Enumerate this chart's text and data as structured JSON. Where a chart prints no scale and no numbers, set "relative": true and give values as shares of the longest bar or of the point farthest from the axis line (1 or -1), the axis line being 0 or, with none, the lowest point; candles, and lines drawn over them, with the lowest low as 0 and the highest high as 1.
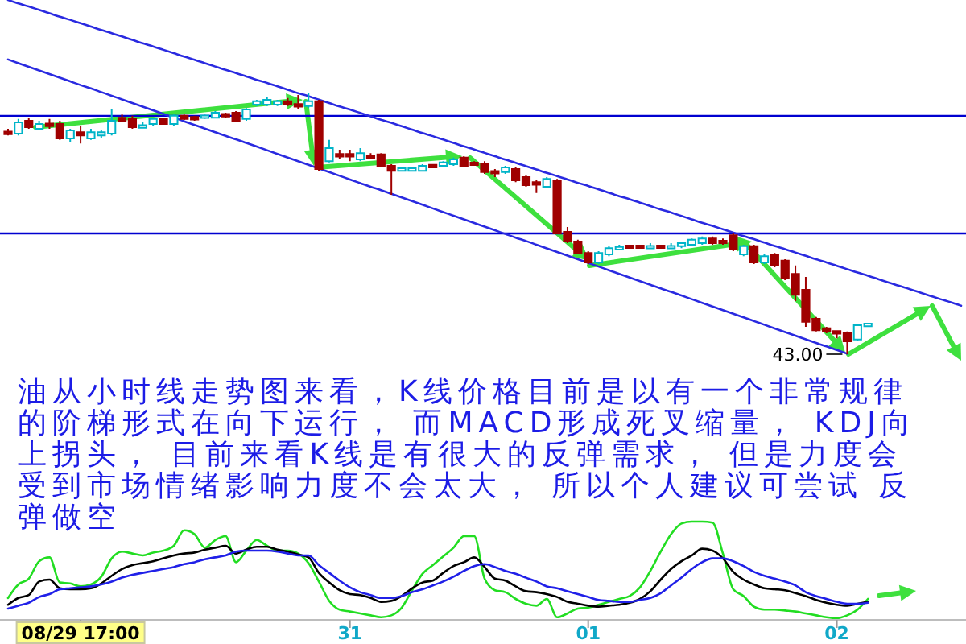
{
  "chart_data": [
    {
      "type": "candlestick",
      "relative": true,
      "categories": [
        null,
        null,
        null,
        null,
        null,
        null,
        null,
        null,
        null,
        null,
        null,
        null,
        null,
        null,
        null,
        null,
        null,
        null,
        null,
        null,
        null,
        null,
        null,
        null,
        null,
        null,
        null,
        null,
        null,
        null,
        null,
        null,
        null,
        null,
        null,
        null,
        null,
        null,
        null,
        null,
        null,
        null,
        null,
        null,
        null,
        null,
        null,
        null,
        null,
        null,
        null,
        null,
        null,
        null,
        null,
        null,
        null,
        null,
        null,
        null,
        null,
        null,
        null,
        null,
        null,
        null,
        null,
        null,
        null,
        null,
        null,
        null,
        null,
        null,
        null,
        null,
        null,
        null,
        null,
        null,
        null,
        null,
        null,
        null,
        null,
        null,
        null,
        null,
        null,
        null,
        null,
        null,
        null
      ],
      "ohlc": [
        [
          0.851,
          0.864,
          0.839,
          0.846
        ],
        [
          0.846,
          0.902,
          0.839,
          0.889
        ],
        [
          0.895,
          0.907,
          0.864,
          0.87
        ],
        [
          0.864,
          0.895,
          0.858,
          0.883
        ],
        [
          0.883,
          0.902,
          0.864,
          0.876
        ],
        [
          0.883,
          0.895,
          0.822,
          0.827
        ],
        [
          0.827,
          0.864,
          0.815,
          0.858
        ],
        [
          0.851,
          0.876,
          0.808,
          0.839
        ],
        [
          0.827,
          0.864,
          0.822,
          0.851
        ],
        [
          0.839,
          0.858,
          0.827,
          0.851
        ],
        [
          0.846,
          0.938,
          0.839,
          0.895
        ],
        [
          0.907,
          0.919,
          0.889,
          0.895
        ],
        [
          0.902,
          0.914,
          0.864,
          0.87
        ],
        [
          0.87,
          0.889,
          0.868,
          0.876
        ],
        [
          0.883,
          0.907,
          0.876,
          0.902
        ],
        [
          0.902,
          0.907,
          0.883,
          0.883
        ],
        [
          0.883,
          0.919,
          0.876,
          0.914
        ],
        [
          0.914,
          0.919,
          0.898,
          0.902
        ],
        [
          0.907,
          0.914,
          0.895,
          0.902
        ],
        [
          0.907,
          0.919,
          0.902,
          0.914
        ],
        [
          0.907,
          0.932,
          0.904,
          0.926
        ],
        [
          0.919,
          0.926,
          0.907,
          0.914
        ],
        [
          0.926,
          0.932,
          0.889,
          0.895
        ],
        [
          0.902,
          0.944,
          0.895,
          0.938
        ],
        [
          0.957,
          0.975,
          0.951,
          0.97
        ],
        [
          0.957,
          0.987,
          0.951,
          0.975
        ],
        [
          0.957,
          0.975,
          0.951,
          0.97
        ],
        [
          0.97,
          0.982,
          0.951,
          0.957
        ],
        [
          0.957,
          0.994,
          0.938,
          0.951
        ],
        [
          0.951,
          1,
          0.944,
          0.97
        ],
        [
          0.97,
          0.975,
          0.703,
          0.71
        ],
        [
          0.74,
          0.822,
          0.735,
          0.79
        ],
        [
          0.766,
          0.784,
          0.747,
          0.759
        ],
        [
          0.766,
          0.784,
          0.74,
          0.759
        ],
        [
          0.747,
          0.79,
          0.74,
          0.771
        ],
        [
          0.759,
          0.771,
          0.747,
          0.754
        ],
        [
          0.766,
          0.771,
          0.722,
          0.722
        ],
        [
          0.722,
          0.728,
          0.611,
          0.703
        ],
        [
          0.706,
          0.716,
          0.703,
          0.71
        ],
        [
          0.706,
          0.716,
          0.703,
          0.71
        ],
        [
          0.703,
          0.728,
          0.701,
          0.722
        ],
        [
          0.722,
          0.728,
          0.716,
          0.72
        ],
        [
          0.722,
          0.74,
          0.716,
          0.735
        ],
        [
          0.728,
          0.754,
          0.722,
          0.747
        ],
        [
          0.754,
          0.759,
          0.722,
          0.722
        ],
        [
          0.732,
          0.74,
          0.722,
          0.728
        ],
        [
          0.728,
          0.74,
          0.691,
          0.698
        ],
        [
          0.701,
          0.71,
          0.679,
          0.694
        ],
        [
          0.698,
          0.722,
          0.691,
          0.716
        ],
        [
          0.71,
          0.716,
          0.66,
          0.667
        ],
        [
          0.679,
          0.686,
          0.642,
          0.648
        ],
        [
          0.657,
          0.667,
          0.618,
          0.652
        ],
        [
          0.642,
          0.679,
          0.636,
          0.672
        ],
        [
          0.667,
          0.672,
          0.463,
          0.463
        ],
        [
          0.469,
          0.488,
          0.426,
          0.432
        ],
        [
          0.432,
          0.439,
          0.383,
          0.388
        ],
        [
          0.388,
          0.395,
          0.346,
          0.352
        ],
        [
          0.352,
          0.395,
          0.346,
          0.388
        ],
        [
          0.383,
          0.414,
          0.376,
          0.407
        ],
        [
          0.405,
          0.42,
          0.401,
          0.407
        ],
        [
          0.414,
          0.42,
          0.407,
          0.41
        ],
        [
          0.414,
          0.42,
          0.407,
          0.41
        ],
        [
          0.407,
          0.426,
          0.405,
          0.414
        ],
        [
          0.414,
          0.42,
          0.407,
          0.41
        ],
        [
          0.407,
          0.426,
          0.405,
          0.414
        ],
        [
          0.414,
          0.432,
          0.407,
          0.426
        ],
        [
          0.42,
          0.444,
          0.414,
          0.439
        ],
        [
          0.426,
          0.451,
          0.42,
          0.444
        ],
        [
          0.444,
          0.451,
          0.42,
          0.426
        ],
        [
          0.432,
          0.444,
          0.42,
          0.429
        ],
        [
          0.456,
          0.463,
          0.395,
          0.401
        ],
        [
          0.383,
          0.42,
          0.376,
          0.414
        ],
        [
          0.414,
          0.42,
          0.346,
          0.352
        ],
        [
          0.352,
          0.383,
          0.346,
          0.376
        ],
        [
          0.383,
          0.388,
          0.333,
          0.34
        ],
        [
          0.359,
          0.364,
          0.284,
          0.291
        ],
        [
          0.308,
          0.34,
          0.204,
          0.228
        ],
        [
          0.247,
          0.296,
          0.105,
          0.124
        ],
        [
          0.136,
          0.143,
          0.087,
          0.092
        ],
        [
          0.099,
          0.105,
          0.08,
          0.09
        ],
        [
          0.087,
          0.092,
          0.061,
          0.08
        ],
        [
          0.08,
          0.087,
          0,
          0.049
        ],
        [
          0.056,
          0.117,
          0.049,
          0.111
        ],
        [
          0.111,
          0.117,
          0.105,
          0.114
        ],
        null,
        null,
        null,
        null,
        null,
        null,
        null,
        null,
        null
      ],
      "series": [
        {
          "type": "line",
          "color": "#2a2ae0",
          "values": [
            1.358,
            1.345,
            1.333,
            1.32,
            1.307,
            1.294,
            1.282,
            1.269,
            1.256,
            1.243,
            1.231,
            1.218,
            1.205,
            1.192,
            1.18,
            1.167,
            1.154,
            1.141,
            1.129,
            1.116,
            1.103,
            1.09,
            1.078,
            1.065,
            1.052,
            1.04,
            1.027,
            1.014,
            1.001,
            0.989,
            0.976,
            0.963,
            0.95,
            0.938,
            0.925,
            0.912,
            0.899,
            0.887,
            0.874,
            0.861,
            0.848,
            0.836,
            0.823,
            0.81,
            0.797,
            0.785,
            0.772,
            0.759,
            0.746,
            0.734,
            0.721,
            0.708,
            0.695,
            0.683,
            0.67,
            0.657,
            0.645,
            0.632,
            0.619,
            0.606,
            0.594,
            0.581,
            0.568,
            0.555,
            0.543,
            0.53,
            0.517,
            0.504,
            0.492,
            0.479,
            0.466,
            0.453,
            0.441,
            0.428,
            0.415,
            0.403,
            0.39,
            0.377,
            0.364,
            0.352,
            0.339,
            0.326,
            0.313,
            0.301,
            0.288,
            0.275,
            0.262,
            0.25,
            0.237,
            0.224,
            0.211,
            0.199,
            0.186
          ]
        },
        {
          "type": "line",
          "color": "#2a2ae0",
          "values": [
            1.13,
            1.116,
            1.102,
            1.088,
            1.074,
            1.06,
            1.046,
            1.032,
            1.019,
            1.005,
            0.991,
            0.977,
            0.963,
            0.949,
            0.935,
            0.921,
            0.907,
            0.893,
            0.879,
            0.865,
            0.851,
            0.837,
            0.824,
            0.81,
            0.796,
            0.782,
            0.768,
            0.754,
            0.74,
            0.726,
            0.712,
            0.698,
            0.684,
            0.67,
            0.656,
            0.642,
            0.629,
            0.615,
            0.601,
            0.587,
            0.573,
            0.559,
            0.545,
            0.531,
            0.517,
            0.503,
            0.489,
            0.475,
            0.461,
            0.447,
            0.434,
            0.42,
            0.406,
            0.392,
            0.378,
            0.364,
            0.35,
            0.336,
            0.322,
            0.308,
            0.294,
            0.28,
            0.266,
            0.252,
            0.239,
            0.225,
            0.211,
            0.197,
            0.183,
            0.169,
            0.155,
            0.141,
            0.127,
            0.113,
            0.099,
            0.085,
            0.071,
            0.057,
            0.043,
            0.03,
            0.016,
            0.002,
            null,
            null,
            null,
            null,
            null,
            null,
            null,
            null,
            null,
            null,
            null
          ]
        }
      ],
      "ref_lines": [
        {
          "axis": "y",
          "value": 0.914,
          "color": "#0000d0"
        },
        {
          "axis": "y",
          "value": 0.463,
          "color": "#0000d0"
        }
      ],
      "annotations": [
        "43.00"
      ]
    },
    {
      "type": "other",
      "annotations": [
        "油从小时线走势图来看，K线价格目前是以有一个非常规律的阶梯形式在向下运行， 而MACD形成死叉缩量， KDJ向上拐头， 目前来看K线是有很大的反弹需求， 但是力度会受到市场情绪影响力度不会太大， 所以个人建议可尝试 反弹做空"
      ]
    },
    {
      "type": "line",
      "relative": true,
      "tick_labels": "x",
      "categories": [
        null,
        null,
        null,
        null,
        null,
        null,
        null,
        "08/29 17:00",
        null,
        null,
        null,
        null,
        null,
        null,
        null,
        null,
        null,
        null,
        null,
        null,
        null,
        null,
        null,
        null,
        null,
        null,
        null,
        null,
        null,
        null,
        null,
        null,
        null,
        "31",
        null,
        null,
        null,
        null,
        null,
        null,
        null,
        null,
        null,
        null,
        null,
        null,
        null,
        null,
        null,
        null,
        null,
        null,
        null,
        null,
        null,
        null,
        "01",
        null,
        null,
        null,
        null,
        null,
        null,
        null,
        null,
        null,
        null,
        null,
        null,
        null,
        null,
        null,
        null,
        null,
        null,
        null,
        null,
        null,
        null,
        null,
        "02",
        null,
        null,
        null,
        null,
        null,
        null,
        null,
        null,
        null,
        null,
        null,
        null
      ],
      "series": [
        {
          "color": "#22dd22",
          "values": [
            0.21,
            0.35,
            0.41,
            0.59,
            0.63,
            0.37,
            0.36,
            0.33,
            0.35,
            0.43,
            0.62,
            0.69,
            0.67,
            0.65,
            0.68,
            0.7,
            0.75,
            0.91,
            0.87,
            0.73,
            0.81,
            0.85,
            0.58,
            0.7,
            0.81,
            0.75,
            0.7,
            0.7,
            0.67,
            0.57,
            0.38,
            0.18,
            0.09,
            0.07,
            0.05,
            0.03,
            0.01,
            0.03,
            0.11,
            0.29,
            0.46,
            0.55,
            0.64,
            0.73,
            0.85,
            0.85,
            0.41,
            0.29,
            0.27,
            0.2,
            0.15,
            0.13,
            0.2,
            0.01,
            0.05,
            0.1,
            0.11,
            0.14,
            0.17,
            0.2,
            0.23,
            0.32,
            0.49,
            0.69,
            0.87,
            0.98,
            1,
            1,
            0.99,
            0.67,
            0.3,
            0.23,
            0.12,
            0.09,
            0.09,
            0.08,
            0.07,
            0.05,
            0.03,
            0.01,
            0,
            0.03,
            0.09,
            0.2,
            null,
            null,
            null,
            null,
            null,
            null,
            null,
            null,
            null
          ]
        },
        {
          "color": "#000000",
          "values": [
            0.14,
            0.21,
            0.24,
            0.38,
            0.4,
            0.31,
            0.3,
            0.3,
            0.31,
            0.36,
            0.44,
            0.51,
            0.55,
            0.57,
            0.59,
            0.62,
            0.65,
            0.67,
            0.68,
            0.71,
            0.73,
            0.75,
            0.67,
            0.71,
            0.74,
            0.74,
            0.71,
            0.69,
            0.66,
            0.63,
            0.47,
            0.37,
            0.29,
            0.25,
            0.24,
            0.21,
            0.17,
            0.18,
            0.23,
            0.31,
            0.37,
            0.39,
            0.47,
            0.54,
            0.58,
            0.63,
            0.53,
            0.41,
            0.39,
            0.33,
            0.28,
            0.27,
            0.25,
            0.22,
            0.17,
            0.15,
            0.13,
            0.12,
            0.13,
            0.14,
            0.16,
            0.2,
            0.28,
            0.4,
            0.51,
            0.59,
            0.65,
            0.72,
            0.7,
            0.62,
            0.48,
            0.4,
            0.35,
            0.31,
            0.3,
            0.29,
            0.26,
            0.23,
            0.19,
            0.16,
            0.14,
            0.13,
            0.15,
            0.17,
            null,
            null,
            null,
            null,
            null,
            null,
            null,
            null,
            null
          ]
        },
        {
          "color": "#2020e8",
          "values": [
            0.1,
            0.13,
            0.16,
            0.22,
            0.25,
            0.3,
            0.31,
            0.32,
            0.33,
            0.35,
            0.38,
            0.42,
            0.45,
            0.47,
            0.49,
            0.51,
            0.53,
            0.56,
            0.58,
            0.61,
            0.63,
            0.65,
            0.69,
            0.7,
            0.7,
            0.7,
            0.69,
            0.67,
            0.65,
            0.65,
            0.55,
            0.47,
            0.39,
            0.32,
            0.27,
            0.24,
            0.21,
            0.21,
            0.23,
            0.27,
            0.3,
            0.34,
            0.38,
            0.43,
            0.49,
            0.54,
            0.56,
            0.53,
            0.49,
            0.46,
            0.42,
            0.38,
            0.33,
            0.31,
            0.28,
            0.25,
            0.22,
            0.19,
            0.18,
            0.17,
            0.17,
            0.19,
            0.21,
            0.26,
            0.34,
            0.42,
            0.51,
            0.58,
            0.62,
            0.62,
            0.59,
            0.54,
            0.48,
            0.44,
            0.41,
            0.38,
            0.34,
            0.27,
            0.23,
            0.2,
            0.17,
            0.15,
            0.15,
            0.16,
            null,
            null,
            null,
            null,
            null,
            null,
            null,
            null,
            null
          ]
        }
      ]
    }
  ]
}
